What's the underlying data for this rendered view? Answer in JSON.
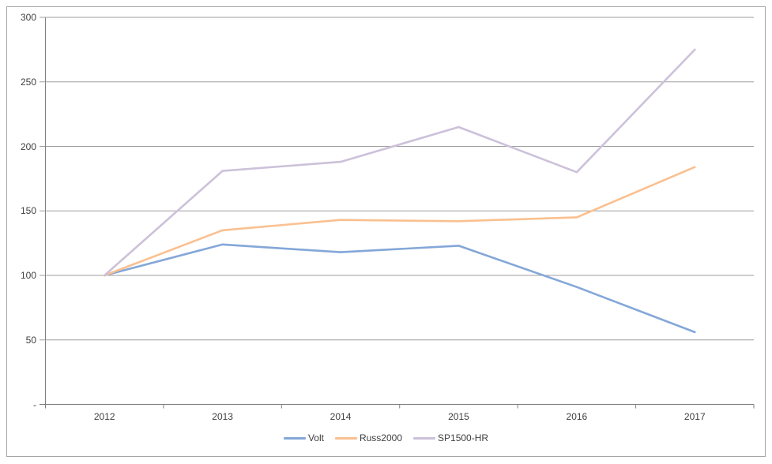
{
  "chart_data": {
    "type": "line",
    "categories": [
      "2012",
      "2013",
      "2014",
      "2015",
      "2016",
      "2017"
    ],
    "series": [
      {
        "name": "Volt",
        "color": "#84a7d8",
        "values": [
          100,
          124,
          118,
          123,
          91,
          56
        ]
      },
      {
        "name": "Russ2000",
        "color": "#fac090",
        "values": [
          100,
          135,
          143,
          142,
          145,
          184
        ]
      },
      {
        "name": "SP1500-HR",
        "color": "#ccc1da",
        "values": [
          100,
          181,
          188,
          215,
          180,
          275
        ]
      }
    ],
    "title": "",
    "xlabel": "",
    "ylabel": "",
    "ylim": [
      0,
      300
    ],
    "y_ticks": [
      {
        "value": 0,
        "label": "-"
      },
      {
        "value": 50,
        "label": "50"
      },
      {
        "value": 100,
        "label": "100"
      },
      {
        "value": 150,
        "label": "150"
      },
      {
        "value": 200,
        "label": "200"
      },
      {
        "value": 250,
        "label": "250"
      },
      {
        "value": 300,
        "label": "300"
      }
    ],
    "grid": "horizontal",
    "legend_position": "bottom-center"
  },
  "colors": {
    "background": "#ffffff",
    "frame_border": "#a6a6a6",
    "axis_line": "#808080",
    "gridline": "#9e9e9e",
    "tick_text": "#3f3f3f"
  }
}
